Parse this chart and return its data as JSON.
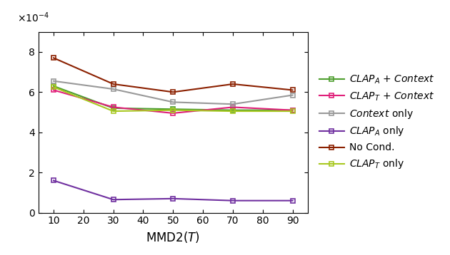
{
  "x": [
    10,
    30,
    50,
    70,
    90
  ],
  "series": {
    "CLAP_A + Context": {
      "values": [
        0.00063,
        0.00052,
        0.000515,
        0.00051,
        0.00051
      ],
      "color": "#4d9e2e",
      "label": "$\\mathit{CLAP}_A$ + $\\mathit{Context}$"
    },
    "CLAP_T + Context": {
      "values": [
        0.00061,
        0.000525,
        0.000495,
        0.000525,
        0.00051
      ],
      "color": "#e0207a",
      "label": "$\\mathit{CLAP}_T$ + $\\mathit{Context}$"
    },
    "Context only": {
      "values": [
        0.000655,
        0.000615,
        0.00055,
        0.00054,
        0.000585
      ],
      "color": "#999999",
      "label": "$\\mathit{Context}$ only"
    },
    "CLAP_A only": {
      "values": [
        0.00016,
        6.5e-05,
        7e-05,
        6e-05,
        6e-05
      ],
      "color": "#7030a0",
      "label": "$\\mathit{CLAP}_A$ only"
    },
    "No Cond.": {
      "values": [
        0.00077,
        0.00064,
        0.0006,
        0.00064,
        0.00061
      ],
      "color": "#8b2000",
      "label": "No Cond."
    },
    "CLAP_T only": {
      "values": [
        0.000625,
        0.000505,
        0.00051,
        0.000505,
        0.000505
      ],
      "color": "#a8c820",
      "label": "$\\mathit{CLAP}_T$ only"
    }
  },
  "xlabel": "MMD2$(T)$",
  "ylim": [
    0,
    0.0009
  ],
  "xlim": [
    5,
    95
  ],
  "xticks": [
    10,
    20,
    30,
    40,
    50,
    60,
    70,
    80,
    90
  ],
  "yticks": [
    0,
    0.0002,
    0.0004,
    0.0006,
    0.0008
  ],
  "ytick_labels": [
    "0",
    "2",
    "4",
    "6",
    "8"
  ],
  "legend_order": [
    "CLAP_A + Context",
    "CLAP_T + Context",
    "Context only",
    "CLAP_A only",
    "No Cond.",
    "CLAP_T only"
  ]
}
